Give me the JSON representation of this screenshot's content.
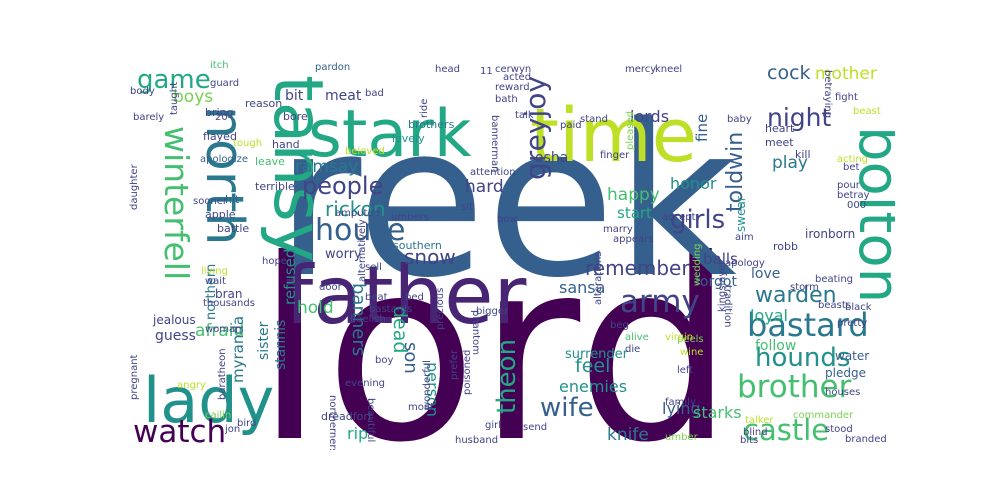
{
  "colors": {
    "background": "#ffffff",
    "palette": [
      "#440154",
      "#482475",
      "#414487",
      "#355f8d",
      "#2a788e",
      "#21918c",
      "#22a884",
      "#44bf70",
      "#7ad151",
      "#bddf26",
      "#fde725"
    ]
  },
  "words": [
    {
      "text": "lord",
      "color": "#440154"
    },
    {
      "text": "reek",
      "color": "#355f8d"
    },
    {
      "text": "father",
      "color": "#482475"
    },
    {
      "text": "time",
      "color": "#bddf26"
    },
    {
      "text": "stark",
      "color": "#22a884"
    },
    {
      "text": "tansy",
      "color": "#22a884"
    },
    {
      "text": "north",
      "color": "#2a788e"
    },
    {
      "text": "lady",
      "color": "#21918c"
    },
    {
      "text": "bolton",
      "color": "#22a884"
    },
    {
      "text": "winterfell",
      "color": "#44bf70"
    },
    {
      "text": "house",
      "color": "#355f8d"
    },
    {
      "text": "people",
      "color": "#414487"
    },
    {
      "text": "bastard",
      "color": "#2a788e"
    },
    {
      "text": "brother",
      "color": "#44bf70"
    },
    {
      "text": "army",
      "color": "#414487"
    },
    {
      "text": "watch",
      "color": "#440154"
    },
    {
      "text": "castle",
      "color": "#44bf70"
    },
    {
      "text": "hounds",
      "color": "#21918c"
    },
    {
      "text": "wife",
      "color": "#355f8d"
    },
    {
      "text": "warden",
      "color": "#2a788e"
    },
    {
      "text": "game",
      "color": "#22a884"
    },
    {
      "text": "greyjoy",
      "color": "#414487"
    },
    {
      "text": "night",
      "color": "#414487"
    },
    {
      "text": "toldwin",
      "color": "#355f8d"
    },
    {
      "text": "girls",
      "color": "#414487"
    },
    {
      "text": "rickon",
      "color": "#21918c"
    },
    {
      "text": "theon",
      "color": "#22a884"
    },
    {
      "text": "snow",
      "color": "#414487"
    },
    {
      "text": "remember",
      "color": "#414487"
    },
    {
      "text": "ramsay",
      "color": "#2a788e"
    },
    {
      "text": "cock",
      "color": "#355f8d"
    },
    {
      "text": "mother",
      "color": "#bddf26"
    },
    {
      "text": "boys",
      "color": "#7ad151"
    },
    {
      "text": "play",
      "color": "#2a788e"
    },
    {
      "text": "lords",
      "color": "#414487"
    },
    {
      "text": "happy",
      "color": "#44bf70"
    },
    {
      "text": "hard",
      "color": "#414487"
    },
    {
      "text": "honor",
      "color": "#21918c"
    },
    {
      "text": "sansa",
      "color": "#355f8d"
    },
    {
      "text": "banners",
      "color": "#2a788e"
    },
    {
      "text": "feel",
      "color": "#21918c"
    },
    {
      "text": "enemies",
      "color": "#21918c"
    },
    {
      "text": "knife",
      "color": "#2a788e"
    },
    {
      "text": "hold",
      "color": "#44bf70"
    },
    {
      "text": "afraid",
      "color": "#44bf70"
    },
    {
      "text": "myranda",
      "color": "#2a788e"
    },
    {
      "text": "refused",
      "color": "#21918c"
    },
    {
      "text": "start",
      "color": "#22a884"
    },
    {
      "text": "dead",
      "color": "#22a884"
    },
    {
      "text": "son",
      "color": "#355f8d"
    },
    {
      "text": "person",
      "color": "#21918c"
    },
    {
      "text": "loyal",
      "color": "#22a884"
    },
    {
      "text": "love",
      "color": "#355f8d"
    },
    {
      "text": "follow",
      "color": "#44bf70"
    },
    {
      "text": "lying",
      "color": "#355f8d"
    },
    {
      "text": "starks",
      "color": "#44bf70"
    },
    {
      "text": "rip",
      "color": "#22a884"
    },
    {
      "text": "forgot",
      "color": "#355f8d"
    },
    {
      "text": "fine",
      "color": "#355f8d"
    },
    {
      "text": "balls",
      "color": "#414487"
    },
    {
      "text": "osha",
      "color": "#414487"
    },
    {
      "text": "meat",
      "color": "#414487"
    },
    {
      "text": "bit",
      "color": "#414487"
    },
    {
      "text": "sister",
      "color": "#2a788e"
    },
    {
      "text": "stannis",
      "color": "#2a788e"
    },
    {
      "text": "guess",
      "color": "#414487"
    },
    {
      "text": "northern",
      "color": "#2a788e"
    },
    {
      "text": "surrender",
      "color": "#21918c"
    },
    {
      "text": "worry",
      "color": "#414487"
    },
    {
      "text": "southern",
      "color": "#2a788e"
    },
    {
      "text": "water",
      "color": "#355f8d"
    },
    {
      "text": "pledge",
      "color": "#355f8d"
    },
    {
      "text": "swear",
      "color": "#21918c"
    },
    {
      "text": "kill",
      "color": "#414487"
    },
    {
      "text": "ironborn",
      "color": "#414487"
    },
    {
      "text": "robb",
      "color": "#414487"
    },
    {
      "text": "meet",
      "color": "#414487"
    },
    {
      "text": "heart",
      "color": "#414487"
    },
    {
      "text": "apologize",
      "color": "#355f8d"
    },
    {
      "text": "bran",
      "color": "#414487"
    },
    {
      "text": "jealous",
      "color": "#414487"
    },
    {
      "text": "thousands",
      "color": "#414487"
    },
    {
      "text": "battle",
      "color": "#414487"
    },
    {
      "text": "apple",
      "color": "#414487"
    },
    {
      "text": "hit",
      "color": "#355f8d"
    },
    {
      "text": "terrible",
      "color": "#414487"
    },
    {
      "text": "flayed",
      "color": "#414487"
    },
    {
      "text": "sooner",
      "color": "#414487"
    },
    {
      "text": "daughter",
      "color": "#414487"
    },
    {
      "text": "leave",
      "color": "#44bf70"
    },
    {
      "text": "hand",
      "color": "#414487"
    },
    {
      "text": "bore",
      "color": "#414487"
    },
    {
      "text": "reason",
      "color": "#414487"
    },
    {
      "text": "bring",
      "color": "#414487"
    },
    {
      "text": "body",
      "color": "#414487"
    },
    {
      "text": "guard",
      "color": "#414487"
    },
    {
      "text": "itch",
      "color": "#44bf70"
    },
    {
      "text": "pardon",
      "color": "#355f8d"
    },
    {
      "text": "bad",
      "color": "#414487"
    },
    {
      "text": "ride",
      "color": "#414487"
    },
    {
      "text": "brothers",
      "color": "#2a788e"
    },
    {
      "text": "lovely",
      "color": "#21918c"
    },
    {
      "text": "beloved",
      "color": "#bddf26"
    },
    {
      "text": "tough",
      "color": "#bddf26"
    },
    {
      "text": "head",
      "color": "#414487"
    },
    {
      "text": "cerwyn",
      "color": "#414487"
    },
    {
      "text": "mercy",
      "color": "#414487"
    },
    {
      "text": "kneel",
      "color": "#414487"
    },
    {
      "text": "reward",
      "color": "#414487"
    },
    {
      "text": "bath",
      "color": "#414487"
    },
    {
      "text": "talk",
      "color": "#414487"
    },
    {
      "text": "paid",
      "color": "#414487"
    },
    {
      "text": "stand",
      "color": "#414487"
    },
    {
      "text": "baby",
      "color": "#414487"
    },
    {
      "text": "finger",
      "color": "#414487"
    },
    {
      "text": "pleased",
      "color": "#7ad151"
    },
    {
      "text": "marry",
      "color": "#414487"
    },
    {
      "text": "wedding",
      "color": "#7ad151"
    },
    {
      "text": "kingslayer",
      "color": "#414487"
    },
    {
      "text": "apology",
      "color": "#414487"
    },
    {
      "text": "fight",
      "color": "#414487"
    },
    {
      "text": "pour",
      "color": "#414487"
    },
    {
      "text": "storm",
      "color": "#414487"
    },
    {
      "text": "black",
      "color": "#414487"
    },
    {
      "text": "pretty",
      "color": "#414487"
    },
    {
      "text": "houses",
      "color": "#414487"
    },
    {
      "text": "commander",
      "color": "#7ad151"
    },
    {
      "text": "talker",
      "color": "#bddf26"
    },
    {
      "text": "stood",
      "color": "#414487"
    },
    {
      "text": "blind",
      "color": "#414487"
    },
    {
      "text": "bits",
      "color": "#414487"
    },
    {
      "text": "tradition",
      "color": "#414487"
    },
    {
      "text": "umber",
      "color": "#7ad151"
    },
    {
      "text": "family",
      "color": "#414487"
    },
    {
      "text": "left",
      "color": "#414487"
    },
    {
      "text": "wine",
      "color": "#bddf26"
    },
    {
      "text": "peels",
      "color": "#7ad151"
    },
    {
      "text": "alive",
      "color": "#44bf70"
    },
    {
      "text": "die",
      "color": "#414487"
    },
    {
      "text": "send",
      "color": "#414487"
    },
    {
      "text": "girl",
      "color": "#414487"
    },
    {
      "text": "husband",
      "color": "#414487"
    },
    {
      "text": "prefer",
      "color": "#414487"
    },
    {
      "text": "poisoned",
      "color": "#414487"
    },
    {
      "text": "wonderful",
      "color": "#414487"
    },
    {
      "text": "moat",
      "color": "#414487"
    },
    {
      "text": "dreadfort",
      "color": "#414487"
    },
    {
      "text": "northerners",
      "color": "#414487"
    },
    {
      "text": "evening",
      "color": "#414487"
    },
    {
      "text": "boy",
      "color": "#414487"
    },
    {
      "text": "beautiful",
      "color": "#414487"
    },
    {
      "text": "cailin",
      "color": "#7ad151"
    },
    {
      "text": "jon",
      "color": "#414487"
    },
    {
      "text": "pregnant",
      "color": "#414487"
    },
    {
      "text": "living",
      "color": "#bddf26"
    },
    {
      "text": "wait",
      "color": "#414487"
    },
    {
      "text": "hope",
      "color": "#414487"
    },
    {
      "text": "woman",
      "color": "#414487"
    },
    {
      "text": "door",
      "color": "#414487"
    },
    {
      "text": "beat",
      "color": "#414487"
    },
    {
      "text": "sell",
      "color": "#414487"
    },
    {
      "text": "baelish",
      "color": "#414487"
    },
    {
      "text": "phantom",
      "color": "#414487"
    },
    {
      "text": "precious",
      "color": "#414487"
    },
    {
      "text": "sit",
      "color": "#414487"
    },
    {
      "text": "umbers",
      "color": "#414487"
    },
    {
      "text": "amputee",
      "color": "#414487"
    },
    {
      "text": "bigger",
      "color": "#414487"
    },
    {
      "text": "appears",
      "color": "#414487"
    },
    {
      "text": "accept",
      "color": "#414487"
    },
    {
      "text": "aim",
      "color": "#414487"
    },
    {
      "text": "beating",
      "color": "#414487"
    },
    {
      "text": "beasts",
      "color": "#414487"
    },
    {
      "text": "beg",
      "color": "#414487"
    },
    {
      "text": "alterations",
      "color": "#414487"
    },
    {
      "text": "virgin",
      "color": "#bddf26"
    },
    {
      "text": "attention",
      "color": "#414487"
    },
    {
      "text": "bannerman",
      "color": "#414487"
    },
    {
      "text": "acted",
      "color": "#414487"
    },
    {
      "text": "betraying",
      "color": "#414487"
    },
    {
      "text": "beast",
      "color": "#bddf26"
    },
    {
      "text": "acting",
      "color": "#bddf26"
    },
    {
      "text": "bet",
      "color": "#414487"
    },
    {
      "text": "betray",
      "color": "#414487"
    },
    {
      "text": "000",
      "color": "#414487"
    },
    {
      "text": "11",
      "color": "#414487"
    },
    {
      "text": "20",
      "color": "#414487"
    },
    {
      "text": "barely",
      "color": "#414487"
    },
    {
      "text": "taught",
      "color": "#414487"
    },
    {
      "text": "bastards",
      "color": "#414487"
    },
    {
      "text": "angry",
      "color": "#bddf26"
    },
    {
      "text": "baratheon",
      "color": "#414487"
    },
    {
      "text": "bird",
      "color": "#414487"
    },
    {
      "text": "branded",
      "color": "#414487"
    },
    {
      "text": "bed",
      "color": "#414487"
    },
    {
      "text": "bow",
      "color": "#414487"
    },
    {
      "text": "alternatively",
      "color": "#414487"
    }
  ]
}
